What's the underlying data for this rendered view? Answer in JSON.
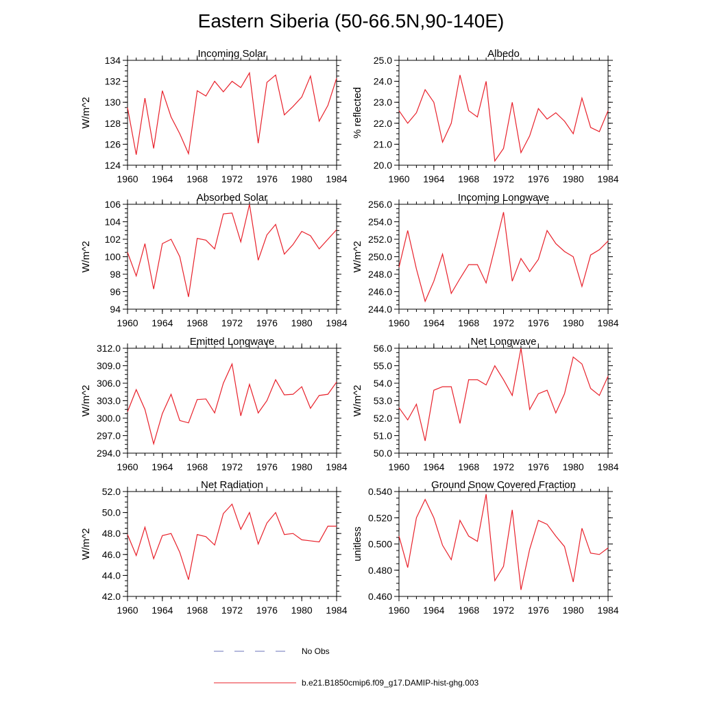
{
  "figure": {
    "title": "Eastern Siberia (50-66.5N,90-140E)"
  },
  "legend": {
    "items": [
      {
        "label": "No Obs",
        "color": "#6a72b8",
        "style": "dashed"
      },
      {
        "label": "b.e21.B1850cmip6.f09_g17.DAMIP-hist-ghg.003",
        "color": "#e8202a",
        "style": "solid"
      }
    ]
  },
  "chart_data": [
    {
      "type": "line",
      "title": "Incoming Solar",
      "xlabel": "",
      "ylabel": "W/m^2",
      "xlim": [
        1960,
        1984
      ],
      "ylim": [
        124,
        134
      ],
      "xticks": [
        "1960",
        "1964",
        "1968",
        "1972",
        "1976",
        "1980",
        "1984"
      ],
      "yticks": [
        "124",
        "126",
        "128",
        "130",
        "132",
        "134"
      ],
      "series": [
        {
          "color": "#e8202a",
          "x": [
            1960,
            1961,
            1962,
            1963,
            1964,
            1965,
            1966,
            1967,
            1968,
            1969,
            1970,
            1971,
            1972,
            1973,
            1974,
            1975,
            1976,
            1977,
            1978,
            1979,
            1980,
            1981,
            1982,
            1983,
            1984
          ],
          "values": [
            129.5,
            125.0,
            130.4,
            125.6,
            131.1,
            128.6,
            127.0,
            125.1,
            131.1,
            130.6,
            132.0,
            131.0,
            132.0,
            131.4,
            132.8,
            126.1,
            131.9,
            132.6,
            128.8,
            129.6,
            130.5,
            132.5,
            128.2,
            129.7,
            132.3
          ]
        }
      ]
    },
    {
      "type": "line",
      "title": "Albedo",
      "xlabel": "",
      "ylabel": "% reflected",
      "xlim": [
        1960,
        1984
      ],
      "ylim": [
        20.0,
        25.0
      ],
      "xticks": [
        "1960",
        "1964",
        "1968",
        "1972",
        "1976",
        "1980",
        "1984"
      ],
      "yticks": [
        "20.0",
        "21.0",
        "22.0",
        "23.0",
        "24.0",
        "25.0"
      ],
      "series": [
        {
          "color": "#e8202a",
          "x": [
            1960,
            1961,
            1962,
            1963,
            1964,
            1965,
            1966,
            1967,
            1968,
            1969,
            1970,
            1971,
            1972,
            1973,
            1974,
            1975,
            1976,
            1977,
            1978,
            1979,
            1980,
            1981,
            1982,
            1983,
            1984
          ],
          "values": [
            22.6,
            22.0,
            22.5,
            23.6,
            23.0,
            21.1,
            22.0,
            24.3,
            22.6,
            22.3,
            24.0,
            20.2,
            20.8,
            23.0,
            20.6,
            21.4,
            22.7,
            22.2,
            22.5,
            22.1,
            21.5,
            23.2,
            21.8,
            21.6,
            22.6
          ]
        }
      ]
    },
    {
      "type": "line",
      "title": "Absorbed Solar",
      "xlabel": "",
      "ylabel": "W/m^2",
      "xlim": [
        1960,
        1984
      ],
      "ylim": [
        94,
        106
      ],
      "xticks": [
        "1960",
        "1964",
        "1968",
        "1972",
        "1976",
        "1980",
        "1984"
      ],
      "yticks": [
        "94",
        "96",
        "98",
        "100",
        "102",
        "104",
        "106"
      ],
      "series": [
        {
          "color": "#e8202a",
          "x": [
            1960,
            1961,
            1962,
            1963,
            1964,
            1965,
            1966,
            1967,
            1968,
            1969,
            1970,
            1971,
            1972,
            1973,
            1974,
            1975,
            1976,
            1977,
            1978,
            1979,
            1980,
            1981,
            1982,
            1983,
            1984
          ],
          "values": [
            100.5,
            97.8,
            101.5,
            96.3,
            101.5,
            102.0,
            100.0,
            95.4,
            102.1,
            101.9,
            100.9,
            104.9,
            105.0,
            101.7,
            106.0,
            99.6,
            102.5,
            103.7,
            100.3,
            101.4,
            102.9,
            102.4,
            100.9,
            102.0,
            103.1
          ]
        }
      ]
    },
    {
      "type": "line",
      "title": "Incoming Longwave",
      "xlabel": "",
      "ylabel": "W/m^2",
      "xlim": [
        1960,
        1984
      ],
      "ylim": [
        244.0,
        256.0
      ],
      "xticks": [
        "1960",
        "1964",
        "1968",
        "1972",
        "1976",
        "1980",
        "1984"
      ],
      "yticks": [
        "244.0",
        "246.0",
        "248.0",
        "250.0",
        "252.0",
        "254.0",
        "256.0"
      ],
      "series": [
        {
          "color": "#e8202a",
          "x": [
            1960,
            1961,
            1962,
            1963,
            1964,
            1965,
            1966,
            1967,
            1968,
            1969,
            1970,
            1971,
            1972,
            1973,
            1974,
            1975,
            1976,
            1977,
            1978,
            1979,
            1980,
            1981,
            1982,
            1983,
            1984
          ],
          "values": [
            248.8,
            253.0,
            248.6,
            244.9,
            247.2,
            250.3,
            245.8,
            247.5,
            249.1,
            249.1,
            247.0,
            251.0,
            255.1,
            247.2,
            249.8,
            248.3,
            249.7,
            253.0,
            251.5,
            250.6,
            250.0,
            246.6,
            250.2,
            250.8,
            251.8
          ]
        }
      ]
    },
    {
      "type": "line",
      "title": "Emitted Longwave",
      "xlabel": "",
      "ylabel": "W/m^2",
      "xlim": [
        1960,
        1984
      ],
      "ylim": [
        294.0,
        312.0
      ],
      "xticks": [
        "1960",
        "1964",
        "1968",
        "1972",
        "1976",
        "1980",
        "1984"
      ],
      "yticks": [
        "294.0",
        "297.0",
        "300.0",
        "303.0",
        "306.0",
        "309.0",
        "312.0"
      ],
      "series": [
        {
          "color": "#e8202a",
          "x": [
            1960,
            1961,
            1962,
            1963,
            1964,
            1965,
            1966,
            1967,
            1968,
            1969,
            1970,
            1971,
            1972,
            1973,
            1974,
            1975,
            1976,
            1977,
            1978,
            1979,
            1980,
            1981,
            1982,
            1983,
            1984
          ],
          "values": [
            301.1,
            304.9,
            301.5,
            295.6,
            300.8,
            304.1,
            299.6,
            299.2,
            303.2,
            303.3,
            300.9,
            306.0,
            309.3,
            300.4,
            305.8,
            300.9,
            303.0,
            306.6,
            304.0,
            304.1,
            305.4,
            301.7,
            303.9,
            304.1,
            306.2
          ]
        }
      ]
    },
    {
      "type": "line",
      "title": "Net Longwave",
      "xlabel": "",
      "ylabel": "W/m^2",
      "xlim": [
        1960,
        1984
      ],
      "ylim": [
        50.0,
        56.0
      ],
      "xticks": [
        "1960",
        "1964",
        "1968",
        "1972",
        "1976",
        "1980",
        "1984"
      ],
      "yticks": [
        "50.0",
        "51.0",
        "52.0",
        "53.0",
        "54.0",
        "55.0",
        "56.0"
      ],
      "series": [
        {
          "color": "#e8202a",
          "x": [
            1960,
            1961,
            1962,
            1963,
            1964,
            1965,
            1966,
            1967,
            1968,
            1969,
            1970,
            1971,
            1972,
            1973,
            1974,
            1975,
            1976,
            1977,
            1978,
            1979,
            1980,
            1981,
            1982,
            1983,
            1984
          ],
          "values": [
            52.6,
            51.9,
            52.8,
            50.7,
            53.6,
            53.8,
            53.8,
            51.7,
            54.2,
            54.2,
            53.9,
            55.0,
            54.2,
            53.3,
            56.0,
            52.5,
            53.4,
            53.6,
            52.3,
            53.4,
            55.5,
            55.1,
            53.7,
            53.3,
            54.4
          ]
        }
      ]
    },
    {
      "type": "line",
      "title": "Net Radiation",
      "xlabel": "",
      "ylabel": "W/m^2",
      "xlim": [
        1960,
        1984
      ],
      "ylim": [
        42.0,
        52.0
      ],
      "xticks": [
        "1960",
        "1964",
        "1968",
        "1972",
        "1976",
        "1980",
        "1984"
      ],
      "yticks": [
        "42.0",
        "44.0",
        "46.0",
        "48.0",
        "50.0",
        "52.0"
      ],
      "series": [
        {
          "color": "#e8202a",
          "x": [
            1960,
            1961,
            1962,
            1963,
            1964,
            1965,
            1966,
            1967,
            1968,
            1969,
            1970,
            1971,
            1972,
            1973,
            1974,
            1975,
            1976,
            1977,
            1978,
            1979,
            1980,
            1981,
            1982,
            1983,
            1984
          ],
          "values": [
            47.9,
            45.9,
            48.6,
            45.6,
            47.8,
            48.0,
            46.2,
            43.6,
            47.9,
            47.7,
            46.9,
            49.9,
            50.8,
            48.4,
            50.0,
            47.0,
            49.0,
            50.0,
            47.9,
            48.0,
            47.4,
            47.3,
            47.2,
            48.7,
            48.7
          ]
        }
      ]
    },
    {
      "type": "line",
      "title": "Ground Snow Covered Fraction",
      "xlabel": "",
      "ylabel": "unitless",
      "xlim": [
        1960,
        1984
      ],
      "ylim": [
        0.46,
        0.54
      ],
      "xticks": [
        "1960",
        "1964",
        "1968",
        "1972",
        "1976",
        "1980",
        "1984"
      ],
      "yticks": [
        "0.460",
        "0.480",
        "0.500",
        "0.520",
        "0.540"
      ],
      "series": [
        {
          "color": "#e8202a",
          "x": [
            1960,
            1961,
            1962,
            1963,
            1964,
            1965,
            1966,
            1967,
            1968,
            1969,
            1970,
            1971,
            1972,
            1973,
            1974,
            1975,
            1976,
            1977,
            1978,
            1979,
            1980,
            1981,
            1982,
            1983,
            1984
          ],
          "values": [
            0.506,
            0.482,
            0.52,
            0.534,
            0.52,
            0.499,
            0.488,
            0.518,
            0.506,
            0.502,
            0.538,
            0.472,
            0.483,
            0.526,
            0.465,
            0.496,
            0.518,
            0.515,
            0.506,
            0.498,
            0.471,
            0.512,
            0.493,
            0.492,
            0.497
          ]
        }
      ]
    }
  ]
}
